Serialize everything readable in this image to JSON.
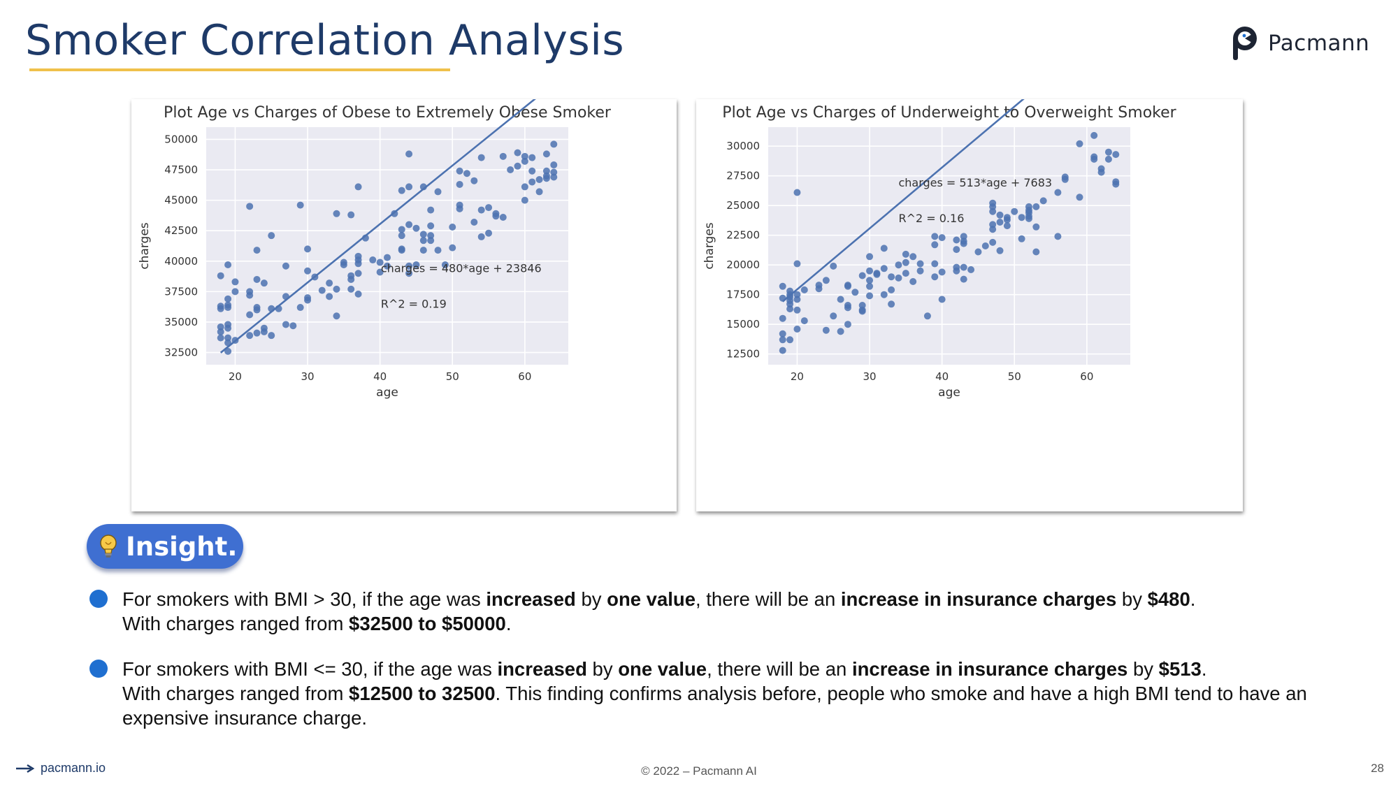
{
  "slide": {
    "title": "Smoker Correlation Analysis",
    "brand": "Pacmann",
    "insight_label": "Insight.",
    "bullets": [
      {
        "t1": "For smokers with BMI > 30, if the age was ",
        "b1": "increased",
        "t2": " by ",
        "b2": "one value",
        "t3": ", there will be an ",
        "b3": "increase in insurance charges",
        "t4": " by ",
        "b4": "$480",
        "t5": ".",
        "line2a": "With charges ranged from ",
        "line2b": "$32500 to $50000",
        "line2c": "."
      },
      {
        "t1": " For smokers with BMI <= 30, if the age was ",
        "b1": "increased",
        "t2": " by ",
        "b2": "one value",
        "t3": ", there will be an ",
        "b3": "increase in insurance charges",
        "t4": " by ",
        "b4": "$513",
        "t5": ".",
        "line2a": "With charges ranged from ",
        "line2b": "$12500 to 32500",
        "line2c": ". This finding confirms analysis before, people who smoke and have a high BMI tend to have an expensive insurance charge."
      }
    ],
    "footer": {
      "site": "pacmann.io",
      "copyright": "© 2022 – Pacmann AI",
      "page_number": "28"
    },
    "colors": {
      "title": "#1e3a68",
      "underline": "#f0c14b",
      "insight_bg": "#3f6fd1",
      "bullet": "#1f6fd0",
      "plot_bg": "#eaeaf2",
      "points": "#4c72b0"
    }
  },
  "chart_data": [
    {
      "type": "scatter",
      "title": "Plot Age vs Charges of Obese to Extremely Obese Smoker",
      "xlabel": "age",
      "ylabel": "charges",
      "xlim": [
        16,
        66
      ],
      "ylim": [
        31500,
        51000
      ],
      "xticks": [
        20,
        30,
        40,
        50,
        60
      ],
      "yticks": [
        32500,
        35000,
        37500,
        40000,
        42500,
        45000,
        47500,
        50000
      ],
      "grid": true,
      "annotations": [
        "charges = 480*age + 23846",
        "R^2 = 0.19"
      ],
      "trendline": {
        "slope": 480,
        "intercept": 23846,
        "x_range": [
          18,
          64
        ]
      },
      "points": [
        [
          18,
          38800
        ],
        [
          18,
          36300
        ],
        [
          18,
          36100
        ],
        [
          18,
          34600
        ],
        [
          18,
          34200
        ],
        [
          18,
          33700
        ],
        [
          19,
          39700
        ],
        [
          19,
          36900
        ],
        [
          19,
          36400
        ],
        [
          19,
          36200
        ],
        [
          19,
          34800
        ],
        [
          19,
          34500
        ],
        [
          19,
          33700
        ],
        [
          19,
          33300
        ],
        [
          19,
          32600
        ],
        [
          20,
          38300
        ],
        [
          20,
          37500
        ],
        [
          20,
          33500
        ],
        [
          22,
          44500
        ],
        [
          22,
          37500
        ],
        [
          22,
          37200
        ],
        [
          22,
          35600
        ],
        [
          22,
          33900
        ],
        [
          23,
          40900
        ],
        [
          23,
          38500
        ],
        [
          23,
          36200
        ],
        [
          23,
          36000
        ],
        [
          23,
          34100
        ],
        [
          24,
          38200
        ],
        [
          24,
          34500
        ],
        [
          24,
          34200
        ],
        [
          25,
          42100
        ],
        [
          25,
          36100
        ],
        [
          25,
          33900
        ],
        [
          26,
          36100
        ],
        [
          27,
          39600
        ],
        [
          27,
          37100
        ],
        [
          27,
          34800
        ],
        [
          28,
          34700
        ],
        [
          29,
          44600
        ],
        [
          29,
          36200
        ],
        [
          30,
          41000
        ],
        [
          30,
          39200
        ],
        [
          30,
          37000
        ],
        [
          30,
          36800
        ],
        [
          31,
          38700
        ],
        [
          32,
          37600
        ],
        [
          33,
          38200
        ],
        [
          33,
          37100
        ],
        [
          34,
          43900
        ],
        [
          34,
          37700
        ],
        [
          34,
          35500
        ],
        [
          35,
          39900
        ],
        [
          35,
          39700
        ],
        [
          36,
          43800
        ],
        [
          36,
          38800
        ],
        [
          36,
          38500
        ],
        [
          36,
          37700
        ],
        [
          37,
          46100
        ],
        [
          37,
          40400
        ],
        [
          37,
          40100
        ],
        [
          37,
          39800
        ],
        [
          37,
          39000
        ],
        [
          37,
          37300
        ],
        [
          38,
          41900
        ],
        [
          39,
          40100
        ],
        [
          40,
          39900
        ],
        [
          40,
          39100
        ],
        [
          41,
          40300
        ],
        [
          41,
          39600
        ],
        [
          42,
          43900
        ],
        [
          43,
          45800
        ],
        [
          43,
          42600
        ],
        [
          43,
          42100
        ],
        [
          43,
          41000
        ],
        [
          43,
          40900
        ],
        [
          44,
          48800
        ],
        [
          44,
          46100
        ],
        [
          44,
          43000
        ],
        [
          44,
          39600
        ],
        [
          44,
          39000
        ],
        [
          45,
          42700
        ],
        [
          45,
          39700
        ],
        [
          46,
          46100
        ],
        [
          46,
          42200
        ],
        [
          46,
          41700
        ],
        [
          46,
          40900
        ],
        [
          47,
          44200
        ],
        [
          47,
          42100
        ],
        [
          47,
          41700
        ],
        [
          47,
          42900
        ],
        [
          48,
          45700
        ],
        [
          48,
          40900
        ],
        [
          49,
          39700
        ],
        [
          50,
          42800
        ],
        [
          50,
          41100
        ],
        [
          51,
          47400
        ],
        [
          51,
          46300
        ],
        [
          51,
          44600
        ],
        [
          51,
          44300
        ],
        [
          52,
          47200
        ],
        [
          53,
          46600
        ],
        [
          53,
          43200
        ],
        [
          54,
          48500
        ],
        [
          54,
          44200
        ],
        [
          54,
          42000
        ],
        [
          55,
          44400
        ],
        [
          55,
          42300
        ],
        [
          56,
          43900
        ],
        [
          56,
          43700
        ],
        [
          57,
          48600
        ],
        [
          57,
          43600
        ],
        [
          58,
          47500
        ],
        [
          59,
          48900
        ],
        [
          59,
          47800
        ],
        [
          60,
          48600
        ],
        [
          60,
          48200
        ],
        [
          60,
          46100
        ],
        [
          60,
          45000
        ],
        [
          61,
          48500
        ],
        [
          61,
          47400
        ],
        [
          61,
          46500
        ],
        [
          62,
          46700
        ],
        [
          62,
          45700
        ],
        [
          63,
          48800
        ],
        [
          63,
          47400
        ],
        [
          63,
          47000
        ],
        [
          63,
          46800
        ],
        [
          64,
          49600
        ],
        [
          64,
          47900
        ],
        [
          64,
          47300
        ],
        [
          64,
          46900
        ]
      ]
    },
    {
      "type": "scatter",
      "title": "Plot Age vs Charges of Underweight to Overweight Smoker",
      "xlabel": "age",
      "ylabel": "charges",
      "xlim": [
        16,
        66
      ],
      "ylim": [
        11600,
        31600
      ],
      "xticks": [
        20,
        30,
        40,
        50,
        60
      ],
      "yticks": [
        12500,
        15000,
        17500,
        20000,
        22500,
        25000,
        27500,
        30000
      ],
      "grid": true,
      "annotations": [
        "charges = 513*age + 7683",
        "R^2 = 0.16"
      ],
      "trendline": {
        "slope": 513,
        "intercept": 7683,
        "x_range": [
          18,
          64
        ]
      },
      "points": [
        [
          18,
          18200
        ],
        [
          18,
          17200
        ],
        [
          18,
          15500
        ],
        [
          18,
          14200
        ],
        [
          18,
          13700
        ],
        [
          18,
          12800
        ],
        [
          19,
          17800
        ],
        [
          19,
          17500
        ],
        [
          19,
          17300
        ],
        [
          19,
          17000
        ],
        [
          19,
          16700
        ],
        [
          19,
          16300
        ],
        [
          19,
          13700
        ],
        [
          20,
          26100
        ],
        [
          20,
          20100
        ],
        [
          20,
          17500
        ],
        [
          20,
          17100
        ],
        [
          20,
          16200
        ],
        [
          20,
          14600
        ],
        [
          21,
          17900
        ],
        [
          21,
          15300
        ],
        [
          23,
          18300
        ],
        [
          23,
          18000
        ],
        [
          24,
          18700
        ],
        [
          24,
          14500
        ],
        [
          25,
          19900
        ],
        [
          25,
          15700
        ],
        [
          26,
          17100
        ],
        [
          26,
          14400
        ],
        [
          27,
          18300
        ],
        [
          27,
          18200
        ],
        [
          27,
          16600
        ],
        [
          27,
          16400
        ],
        [
          27,
          15000
        ],
        [
          28,
          17700
        ],
        [
          29,
          19100
        ],
        [
          29,
          16600
        ],
        [
          29,
          16200
        ],
        [
          29,
          16100
        ],
        [
          30,
          20700
        ],
        [
          30,
          19500
        ],
        [
          30,
          18700
        ],
        [
          30,
          18200
        ],
        [
          30,
          17400
        ],
        [
          31,
          19300
        ],
        [
          31,
          19200
        ],
        [
          32,
          21400
        ],
        [
          32,
          19700
        ],
        [
          32,
          17500
        ],
        [
          33,
          19000
        ],
        [
          33,
          17900
        ],
        [
          33,
          16700
        ],
        [
          34,
          20000
        ],
        [
          34,
          18900
        ],
        [
          35,
          20900
        ],
        [
          35,
          20200
        ],
        [
          35,
          19300
        ],
        [
          36,
          20700
        ],
        [
          36,
          18600
        ],
        [
          37,
          20100
        ],
        [
          37,
          19500
        ],
        [
          38,
          15700
        ],
        [
          39,
          22400
        ],
        [
          39,
          21700
        ],
        [
          39,
          20100
        ],
        [
          39,
          19000
        ],
        [
          40,
          22300
        ],
        [
          40,
          19400
        ],
        [
          40,
          17100
        ],
        [
          42,
          22100
        ],
        [
          42,
          21300
        ],
        [
          42,
          19800
        ],
        [
          42,
          19500
        ],
        [
          43,
          22400
        ],
        [
          43,
          22000
        ],
        [
          43,
          21800
        ],
        [
          43,
          19800
        ],
        [
          43,
          18800
        ],
        [
          44,
          19600
        ],
        [
          45,
          21100
        ],
        [
          46,
          21600
        ],
        [
          47,
          25200
        ],
        [
          47,
          24900
        ],
        [
          47,
          24500
        ],
        [
          47,
          23400
        ],
        [
          47,
          23000
        ],
        [
          47,
          21900
        ],
        [
          48,
          24200
        ],
        [
          48,
          23600
        ],
        [
          48,
          21200
        ],
        [
          49,
          24000
        ],
        [
          49,
          23800
        ],
        [
          49,
          23300
        ],
        [
          50,
          24500
        ],
        [
          51,
          24000
        ],
        [
          51,
          22200
        ],
        [
          52,
          24900
        ],
        [
          52,
          24600
        ],
        [
          52,
          24400
        ],
        [
          52,
          24100
        ],
        [
          52,
          23900
        ],
        [
          53,
          24900
        ],
        [
          53,
          23200
        ],
        [
          53,
          21100
        ],
        [
          54,
          25400
        ],
        [
          56,
          26100
        ],
        [
          56,
          22400
        ],
        [
          57,
          27400
        ],
        [
          57,
          27200
        ],
        [
          59,
          30200
        ],
        [
          59,
          25700
        ],
        [
          61,
          30900
        ],
        [
          61,
          29100
        ],
        [
          61,
          28900
        ],
        [
          62,
          28100
        ],
        [
          62,
          27800
        ],
        [
          63,
          29500
        ],
        [
          63,
          28900
        ],
        [
          64,
          29300
        ],
        [
          64,
          27000
        ],
        [
          64,
          26800
        ]
      ]
    }
  ]
}
